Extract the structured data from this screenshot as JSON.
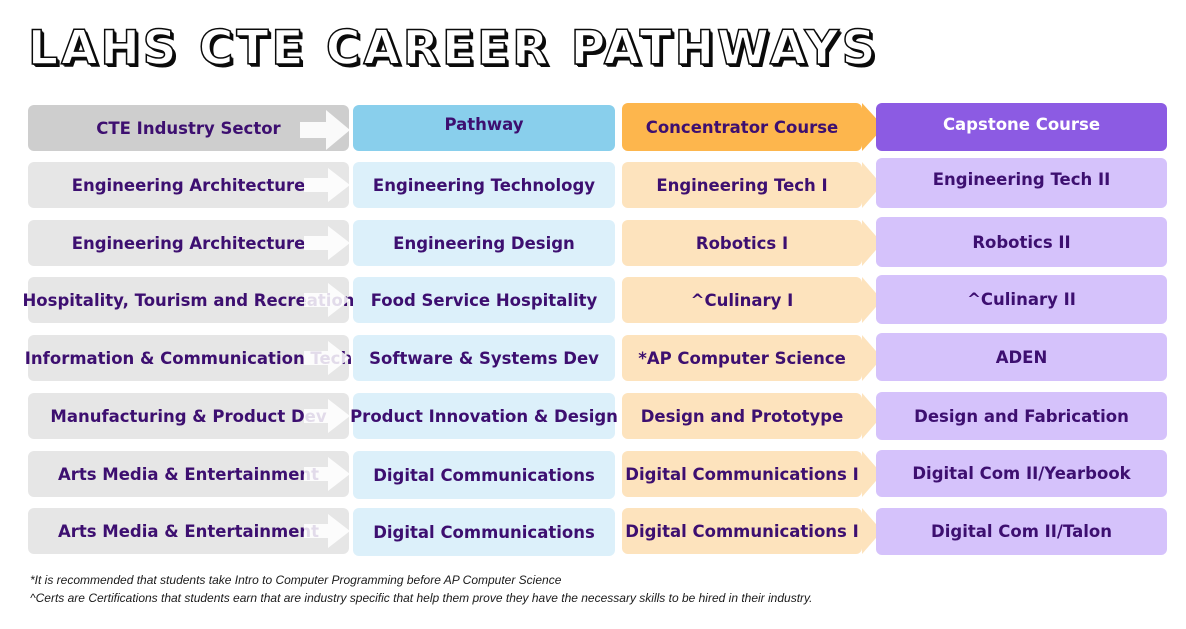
{
  "title": "LAHS CTE CAREER PATHWAYS",
  "headers": [
    "CTE Industry Sector",
    "Pathway",
    "Concentrator Course",
    "Capstone Course"
  ],
  "rows": [
    [
      "Engineering Architecture",
      "Engineering Technology",
      "Engineering Tech I",
      "Engineering Tech II"
    ],
    [
      "Engineering Architecture",
      "Engineering Design",
      "Robotics I",
      "Robotics II"
    ],
    [
      "Hospitality, Tourism and Recreation",
      "Food Service Hospitality",
      "^Culinary I",
      "^Culinary II"
    ],
    [
      "Information & Communication Tech",
      "Software & Systems Dev",
      "*AP Computer Science",
      "ADEN"
    ],
    [
      "Manufacturing & Product Dev",
      "Product Innovation & Design",
      "Design and Prototype",
      "Design and Fabrication"
    ],
    [
      "Arts Media & Entertainment",
      "Digital Communications",
      "Digital Communications I",
      "Digital Com II/Yearbook"
    ],
    [
      "Arts Media & Entertainment",
      "Digital Communications",
      "Digital Communications I",
      "Digital Com II/Talon"
    ]
  ],
  "footnotes": [
    "*It is recommended that students take Intro to Computer Programming before AP Computer Science",
    "^Certs are Certifications that students earn that are industry specific that help them prove they have the necessary skills to be hired in their industry."
  ],
  "colors": {
    "sector_header": "#cecece",
    "pathway_header": "#89cfec",
    "concentrator_header": "#fdb64d",
    "capstone_header": "#8c5be3",
    "text": "#3d0f70"
  }
}
